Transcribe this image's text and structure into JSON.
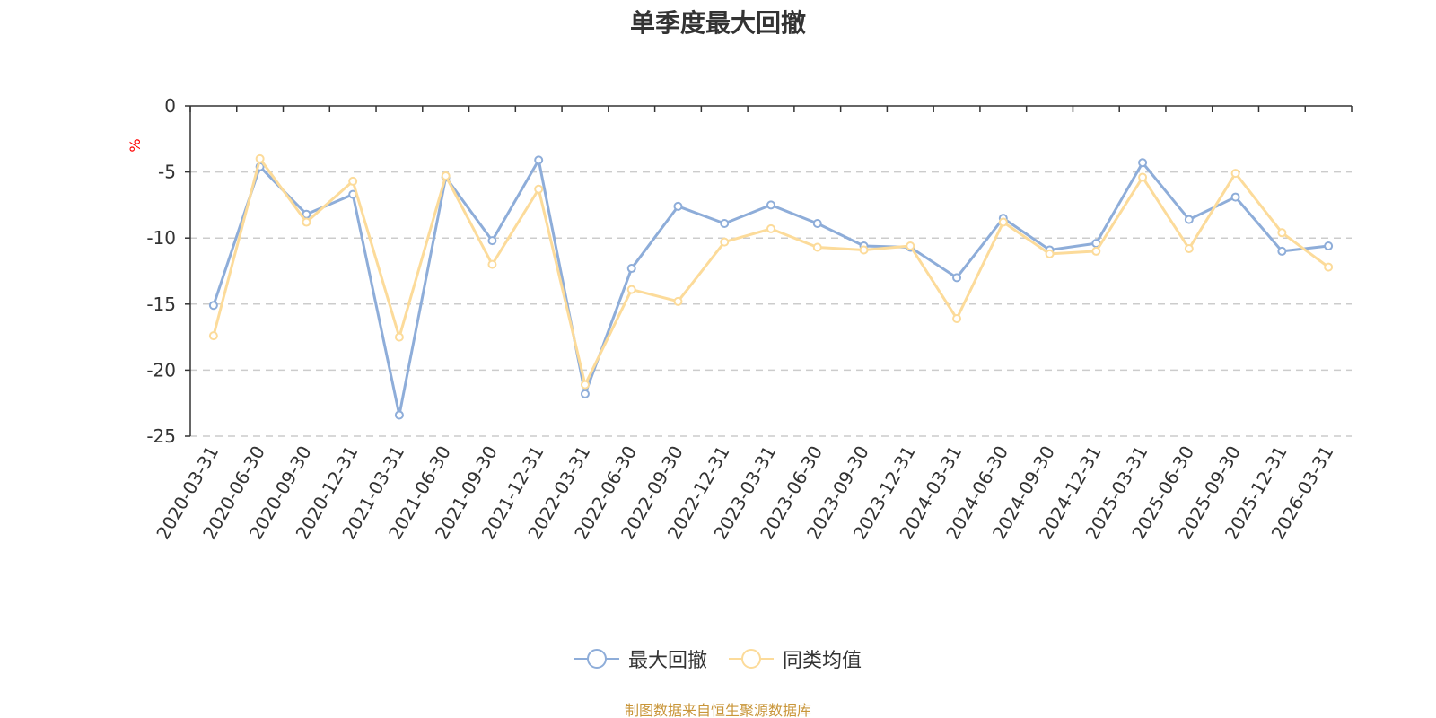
{
  "chart_data": {
    "type": "line",
    "title": "单季度最大回撤",
    "ylabel": "%",
    "xlabel": "",
    "ylim": [
      -25,
      0
    ],
    "yticks": [
      0,
      -5,
      -10,
      -15,
      -20,
      -25
    ],
    "grid": true,
    "legend_position": "bottom-center",
    "categories": [
      "2020-03-31",
      "2020-06-30",
      "2020-09-30",
      "2020-12-31",
      "2021-03-31",
      "2021-06-30",
      "2021-09-30",
      "2021-12-31",
      "2022-03-31",
      "2022-06-30",
      "2022-09-30",
      "2022-12-31",
      "2023-03-31",
      "2023-06-30",
      "2023-09-30",
      "2023-12-31",
      "2024-03-31",
      "2024-06-30",
      "2024-09-30",
      "2024-12-31",
      "2025-03-31",
      "2025-06-30",
      "2025-09-30",
      "2025-12-31",
      "2026-03-31"
    ],
    "series": [
      {
        "name": "最大回撤",
        "color": "#8eadd9",
        "values": [
          -15.1,
          -4.6,
          -8.2,
          -6.7,
          -23.4,
          -5.4,
          -10.2,
          -4.1,
          -21.8,
          -12.3,
          -7.6,
          -8.9,
          -7.5,
          -8.9,
          -10.6,
          -10.7,
          -13.0,
          -8.5,
          -10.9,
          -10.4,
          -4.3,
          -8.6,
          -6.9,
          -11.0,
          -10.6
        ]
      },
      {
        "name": "同类均值",
        "color": "#fcdb9a",
        "values": [
          -17.4,
          -4.0,
          -8.8,
          -5.7,
          -17.5,
          -5.3,
          -12.0,
          -6.3,
          -21.1,
          -13.9,
          -14.8,
          -10.3,
          -9.3,
          -10.7,
          -10.9,
          -10.6,
          -16.1,
          -8.8,
          -11.2,
          -11.0,
          -5.4,
          -10.8,
          -5.1,
          -9.6,
          -12.2
        ]
      }
    ]
  },
  "source_text": "制图数据来自恒生聚源数据库"
}
